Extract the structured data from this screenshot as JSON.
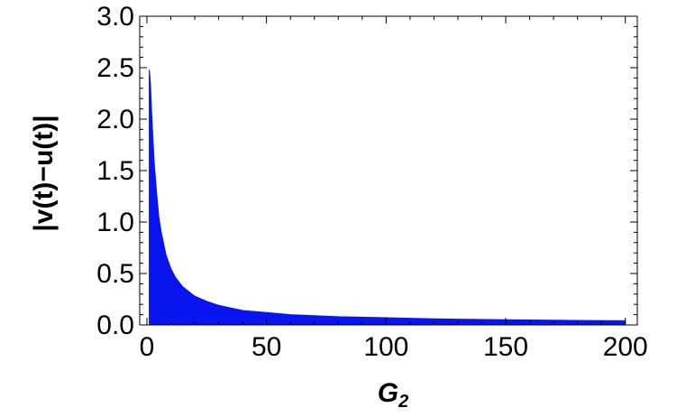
{
  "chart_data": {
    "type": "area",
    "title": "",
    "xlabel": "G",
    "xlabel_sub": "2",
    "ylabel": "|v(t)−u(t)|",
    "xlim": [
      -3,
      205
    ],
    "ylim": [
      0,
      3.0
    ],
    "x_ticks": [
      0,
      50,
      100,
      150,
      200
    ],
    "x_tick_labels": [
      "0",
      "50",
      "100",
      "150",
      "200"
    ],
    "y_ticks": [
      0.0,
      0.5,
      1.0,
      1.5,
      2.0,
      2.5,
      3.0
    ],
    "y_tick_labels": [
      "0.0",
      "0.5",
      "1.0",
      "1.5",
      "2.0",
      "2.5",
      "3.0"
    ],
    "grid": false,
    "color": "#0a14f0",
    "envelope": {
      "x": [
        1,
        1.5,
        2,
        3,
        4,
        5,
        6,
        8,
        10,
        12,
        15,
        20,
        25,
        30,
        40,
        50,
        60,
        80,
        100,
        120,
        150,
        175,
        200
      ],
      "y": [
        2.48,
        2.35,
        2.05,
        1.6,
        1.3,
        1.05,
        0.9,
        0.68,
        0.55,
        0.46,
        0.37,
        0.28,
        0.23,
        0.19,
        0.14,
        0.12,
        0.1,
        0.08,
        0.07,
        0.06,
        0.05,
        0.045,
        0.04
      ]
    }
  }
}
